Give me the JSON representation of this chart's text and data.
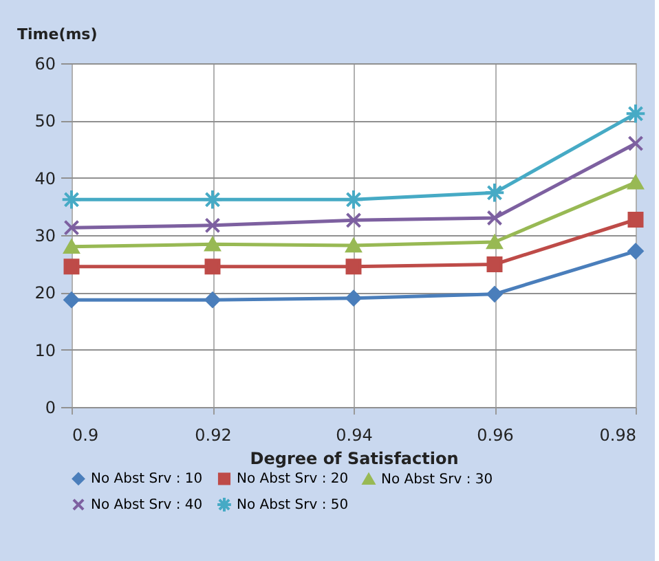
{
  "chart_data": {
    "type": "line",
    "xlabel": "Degree of Satisfaction",
    "ylabel": "Time(ms)",
    "categories": [
      "0.9",
      "0.92",
      "0.94",
      "0.96",
      "0.98"
    ],
    "series": [
      {
        "name": "No Abst Srv : 10",
        "color": "#4a7ebb",
        "marker": "diamond",
        "values": [
          18.7,
          18.7,
          19.0,
          19.7,
          27.2
        ]
      },
      {
        "name": "No Abst Srv : 20",
        "color": "#be4b48",
        "marker": "square",
        "values": [
          24.5,
          24.5,
          24.5,
          24.9,
          32.7
        ]
      },
      {
        "name": "No Abst Srv : 30",
        "color": "#98b954",
        "marker": "triangle",
        "values": [
          28.0,
          28.4,
          28.2,
          28.8,
          39.2
        ]
      },
      {
        "name": "No Abst Srv : 40",
        "color": "#7d60a0",
        "marker": "cross",
        "values": [
          31.3,
          31.7,
          32.6,
          33.0,
          46.0
        ]
      },
      {
        "name": "No Abst Srv : 50",
        "color": "#46aac5",
        "marker": "cross",
        "values": [
          36.2,
          36.2,
          36.2,
          37.4,
          51.2
        ]
      }
    ],
    "ylim": [
      0,
      60
    ],
    "yticks": [
      0,
      10,
      20,
      30,
      40,
      50,
      60
    ],
    "grid": true,
    "legend": "bottom",
    "line_style": "solid"
  }
}
